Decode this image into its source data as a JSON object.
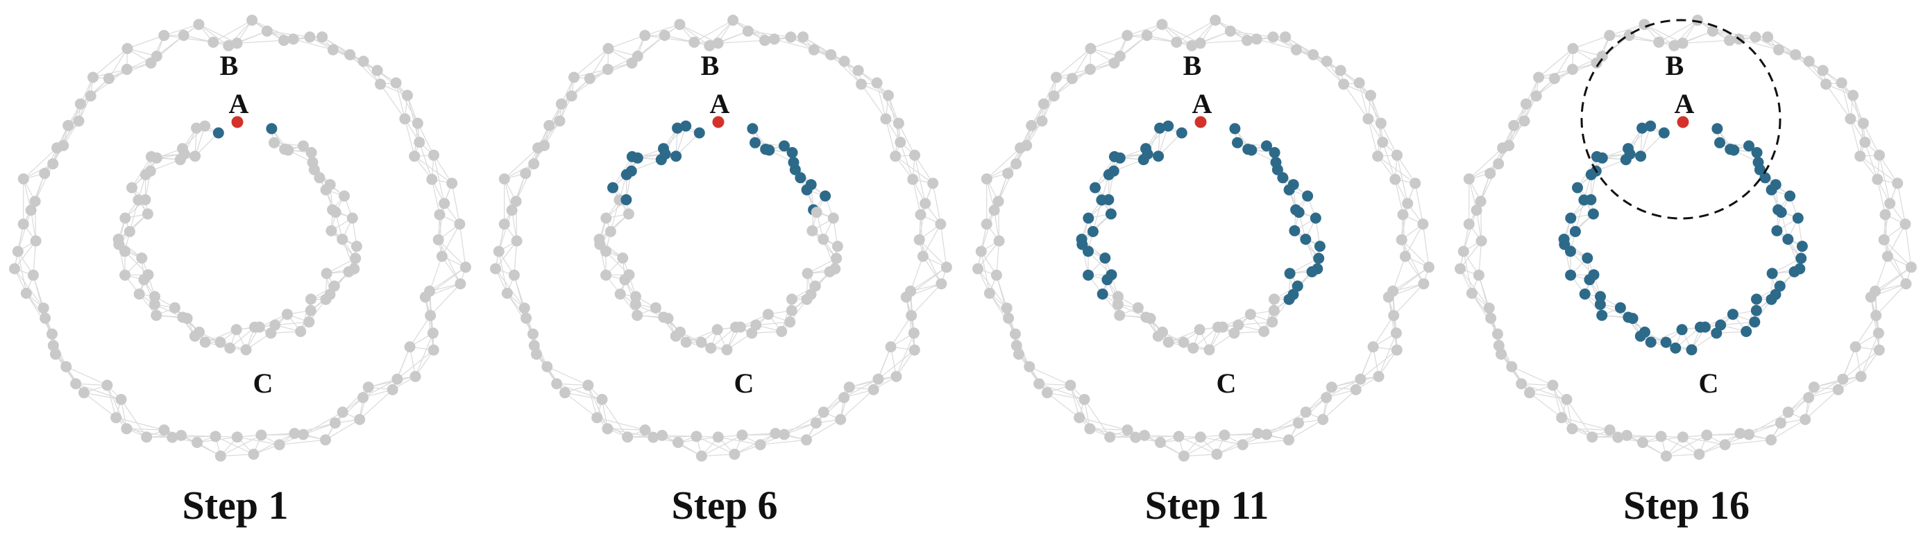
{
  "colors": {
    "inactive": "#c9c9c9",
    "visited": "#2d6a8a",
    "source": "#d3322b",
    "edge": "#dadada"
  },
  "labels": {
    "B": "B",
    "A": "A",
    "C": "C"
  },
  "panels": [
    {
      "title": "Step 1",
      "step": 1,
      "visited_fraction": 0.03,
      "highlight_circle": false
    },
    {
      "title": "Step 6",
      "step": 6,
      "visited_fraction": 0.36,
      "highlight_circle": false
    },
    {
      "title": "Step 11",
      "step": 11,
      "visited_fraction": 0.7,
      "highlight_circle": false
    },
    {
      "title": "Step 16",
      "step": 16,
      "visited_fraction": 1.0,
      "highlight_circle": true
    }
  ]
}
